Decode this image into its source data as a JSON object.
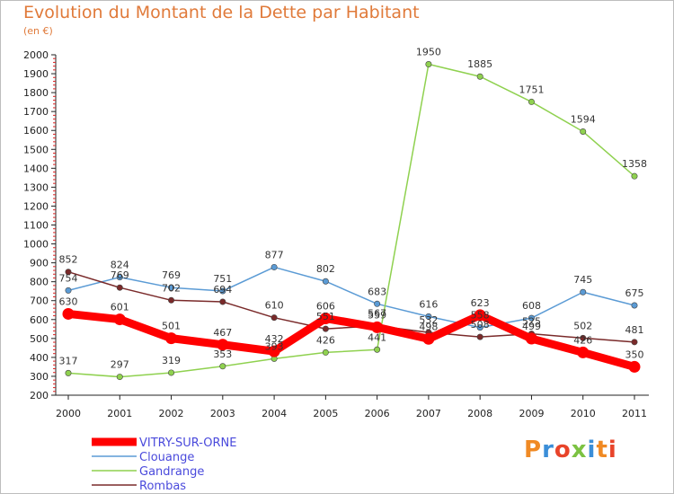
{
  "chart_data": {
    "type": "line",
    "title": "Evolution du Montant de la Dette par Habitant",
    "subtitle": "(en €)",
    "x": [
      "2000",
      "2001",
      "2002",
      "2003",
      "2004",
      "2005",
      "2006",
      "2007",
      "2008",
      "2009",
      "2010",
      "2011"
    ],
    "ylim": [
      200,
      2000
    ],
    "ystep": 100,
    "grid": false,
    "legend_position": "bottom-left",
    "series": [
      {
        "name": "VITRY-SUR-ORNE",
        "color": "#ff0000",
        "values": [
          630,
          601,
          501,
          467,
          432,
          606,
          559,
          498,
          623,
          499,
          426,
          350
        ]
      },
      {
        "name": "Clouange",
        "color": "#5b9bd5",
        "values": [
          754,
          824,
          769,
          751,
          877,
          802,
          683,
          616,
          558,
          608,
          745,
          675
        ]
      },
      {
        "name": "Gandrange",
        "color": "#8fd14f",
        "values": [
          317,
          297,
          319,
          353,
          393,
          426,
          441,
          1950,
          1885,
          1751,
          1594,
          1358
        ]
      },
      {
        "name": "Rombas",
        "color": "#7a2a2a",
        "values": [
          852,
          769,
          702,
          694,
          610,
          551,
          567,
          532,
          508,
          525,
          502,
          481
        ]
      }
    ]
  },
  "logo": {
    "text": "Proxiti"
  }
}
